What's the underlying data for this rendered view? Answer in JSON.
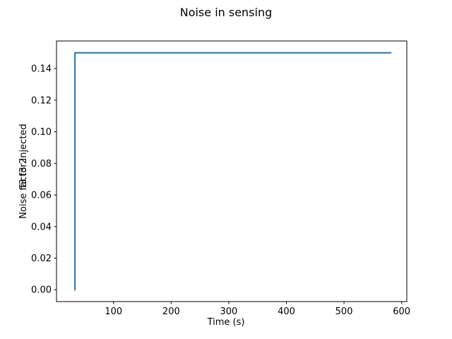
{
  "chart_data": {
    "type": "line",
    "title": "Noise in sensing",
    "xlabel": "Time (s)",
    "ylabel": "Noise factor injected",
    "ylabel_overlay": "f3 f3 2",
    "xlim": [
      1,
      609
    ],
    "ylim": [
      -0.0075,
      0.1575
    ],
    "xticks": [
      100,
      200,
      300,
      400,
      500,
      600
    ],
    "xtick_labels": [
      "100",
      "200",
      "300",
      "400",
      "500",
      "600"
    ],
    "yticks": [
      0.0,
      0.02,
      0.04,
      0.06,
      0.08,
      0.1,
      0.12,
      0.14
    ],
    "ytick_labels": [
      "0.00",
      "0.02",
      "0.04",
      "0.06",
      "0.08",
      "0.10",
      "0.12",
      "0.14"
    ],
    "grid": false,
    "series": [
      {
        "color": "#1f77b4",
        "x": [
          33,
          33,
          34,
          581
        ],
        "y": [
          0.0,
          0.15,
          0.15,
          0.15
        ]
      }
    ]
  }
}
